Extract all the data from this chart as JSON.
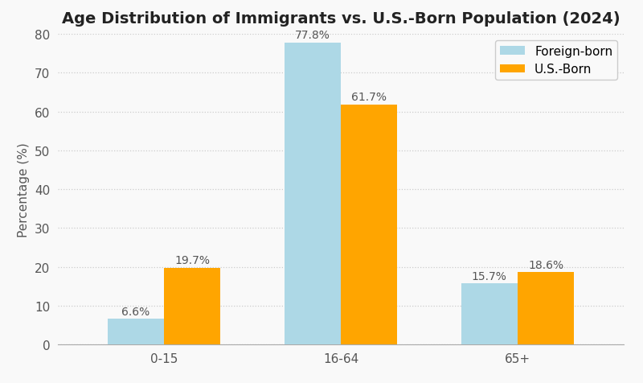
{
  "title": "Age Distribution of Immigrants vs. U.S.-Born Population (2024)",
  "categories": [
    "0-15",
    "16-64",
    "65+"
  ],
  "foreign_born": [
    6.6,
    77.8,
    15.7
  ],
  "us_born": [
    19.7,
    61.7,
    18.6
  ],
  "foreign_born_label": "Foreign-born",
  "us_born_label": "U.S.-Born",
  "foreign_born_color": "#add8e6",
  "us_born_color": "#FFA500",
  "ylabel": "Percentage (%)",
  "ylim": [
    0,
    80
  ],
  "yticks": [
    0,
    10,
    20,
    30,
    40,
    50,
    60,
    70,
    80
  ],
  "bar_width": 0.32,
  "title_fontsize": 14,
  "label_fontsize": 11,
  "tick_fontsize": 11,
  "annotation_fontsize": 10,
  "background_color": "#f9f9f9",
  "grid_color": "#cccccc",
  "grid_style": ":"
}
